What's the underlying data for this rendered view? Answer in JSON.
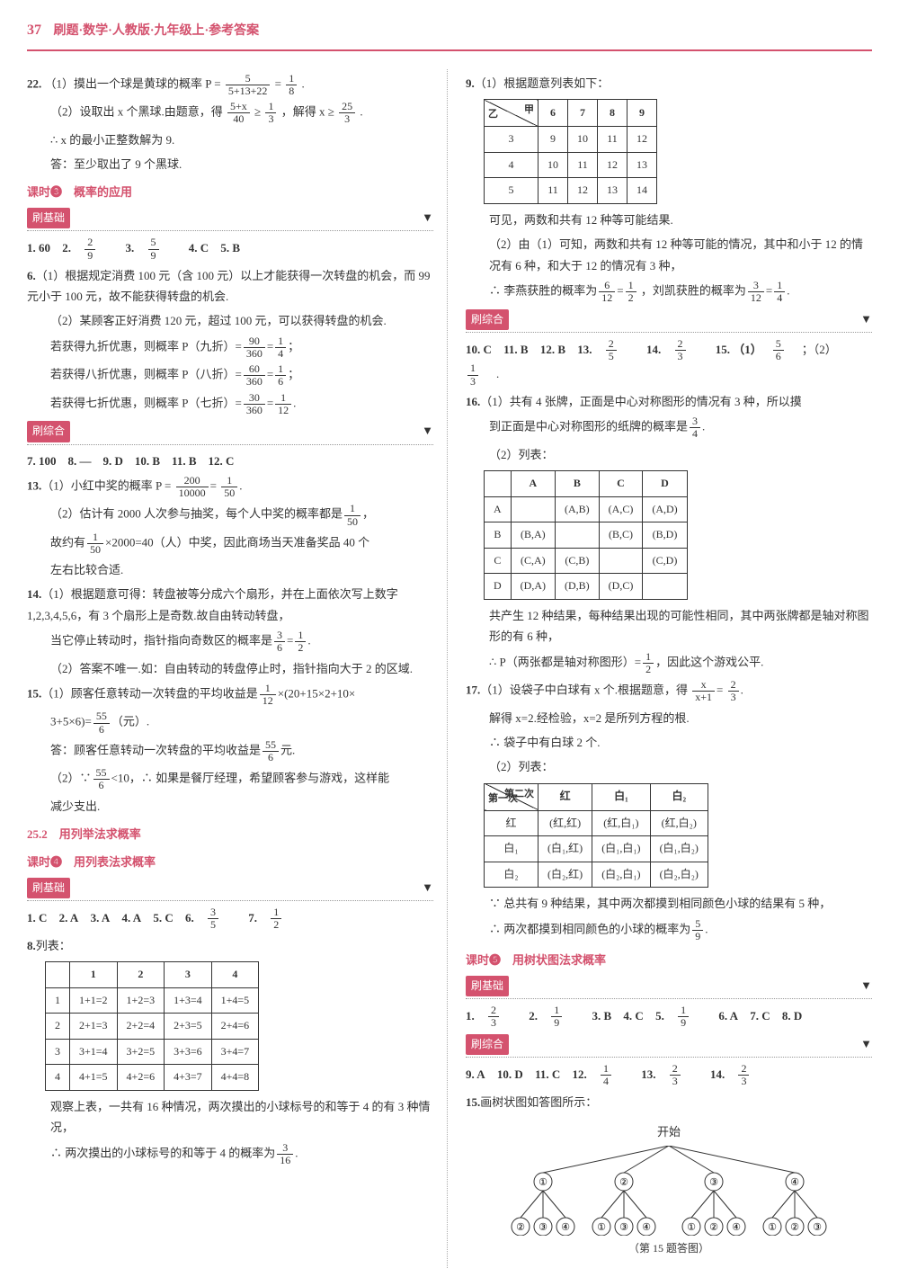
{
  "header": {
    "page": "37",
    "title": "刷题·数学·人教版·九年级上·参考答案"
  },
  "colors": {
    "accent": "#d4526e",
    "text": "#333333",
    "border": "#333333"
  },
  "left": {
    "q22": {
      "num": "22.",
      "p1_a": "（1）摸出一个球是黄球的概率 P =",
      "p1_frac_n": "5",
      "p1_frac_d": "5+13+22",
      "p1_eq": "=",
      "p1_r_n": "1",
      "p1_r_d": "8",
      "p1_end": ".",
      "p2_a": "（2）设取出 x 个黑球.由题意，得",
      "p2_f1_n": "5+x",
      "p2_f1_d": "40",
      "p2_ge": "≥",
      "p2_f2_n": "1",
      "p2_f2_d": "3",
      "p2_b": "，解得 x ≥",
      "p2_f3_n": "25",
      "p2_f3_d": "3",
      "p2_end": ".",
      "p3": "∴ x 的最小正整数解为 9.",
      "p4": "答：至少取出了 9 个黑球."
    },
    "lesson3": {
      "title": "课时❸　概率的应用",
      "sub": "刷基础"
    },
    "row1": {
      "a1": "1. 60",
      "a2": "2.",
      "a2n": "2",
      "a2d": "9",
      "a3": "3.",
      "a3n": "5",
      "a3d": "9",
      "a4": "4. C",
      "a5": "5. B"
    },
    "q6": {
      "num": "6.",
      "p1": "（1）根据规定消费 100 元（含 100 元）以上才能获得一次转盘的机会，而 99 元小于 100 元，故不能获得转盘的机会.",
      "p2": "（2）某顾客正好消费 120 元，超过 100 元，可以获得转盘的机会.",
      "l9a": "若获得九折优惠，则概率 P（九折）=",
      "l9_n1": "90",
      "l9_d1": "360",
      "eq": "=",
      "l9_n2": "1",
      "l9_d2": "4",
      "semi": "；",
      "l8a": "若获得八折优惠，则概率 P（八折）=",
      "l8_n1": "60",
      "l8_d1": "360",
      "l8_n2": "1",
      "l8_d2": "6",
      "l7a": "若获得七折优惠，则概率 P（七折）=",
      "l7_n1": "30",
      "l7_d1": "360",
      "l7_n2": "1",
      "l7_d2": "12",
      "dot": "."
    },
    "综合1": {
      "sub": "刷综合"
    },
    "row2": "7. 100　8. —　9. D　10. B　11. B　12. C",
    "q13": {
      "num": "13.",
      "p1a": "（1）小红中奖的概率 P =",
      "p1n1": "200",
      "p1d1": "10000",
      "eq": "=",
      "p1n2": "1",
      "p1d2": "50",
      "dot": ".",
      "p2a": "（2）估计有 2000 人次参与抽奖，每个人中奖的概率都是",
      "p2n": "1",
      "p2d": "50",
      "comma": "，",
      "p3a": "故约有",
      "p3n": "1",
      "p3d": "50",
      "p3b": "×2000=40（人）中奖，因此商场当天准备奖品 40 个",
      "p4": "左右比较合适."
    },
    "q14": {
      "num": "14.",
      "p1": "（1）根据题意可得：转盘被等分成六个扇形，并在上面依次写上数字 1,2,3,4,5,6，有 3 个扇形上是奇数.故自由转动转盘，",
      "p2a": "当它停止转动时，指针指向奇数区的概率是",
      "p2n1": "3",
      "p2d1": "6",
      "eq": "=",
      "p2n2": "1",
      "p2d2": "2",
      "dot": ".",
      "p3": "（2）答案不唯一.如：自由转动的转盘停止时，指针指向大于 2 的区域."
    },
    "q15": {
      "num": "15.",
      "p1a": "（1）顾客任意转动一次转盘的平均收益是",
      "p1n": "1",
      "p1d": "12",
      "p1b": "×(20+15×2+10×",
      "p2a": "3+5×6)=",
      "p2n": "55",
      "p2d": "6",
      "p2b": "（元）.",
      "p3a": "答：顾客任意转动一次转盘的平均收益是",
      "p3n": "55",
      "p3d": "6",
      "p3b": "元.",
      "p4a": "（2）∵",
      "p4n": "55",
      "p4d": "6",
      "p4b": "<10，∴ 如果是餐厅经理，希望顾客参与游戏，这样能",
      "p5": "减少支出."
    },
    "section252": {
      "title": "25.2　用列举法求概率"
    },
    "lesson4": {
      "title": "课时❹　用列表法求概率",
      "sub": "刷基础"
    },
    "row3": {
      "a1": "1. C",
      "a2": "2. A",
      "a3": "3. A",
      "a4": "4. A",
      "a5": "5. C",
      "a6": "6.",
      "a6n": "3",
      "a6d": "5",
      "a7": "7.",
      "a7n": "1",
      "a7d": "2"
    },
    "q8": {
      "num": "8.",
      "head": "列表：",
      "table": {
        "cols": [
          "",
          "1",
          "2",
          "3",
          "4"
        ],
        "rows": [
          [
            "1",
            "1+1=2",
            "1+2=3",
            "1+3=4",
            "1+4=5"
          ],
          [
            "2",
            "2+1=3",
            "2+2=4",
            "2+3=5",
            "2+4=6"
          ],
          [
            "3",
            "3+1=4",
            "3+2=5",
            "3+3=6",
            "3+4=7"
          ],
          [
            "4",
            "4+1=5",
            "4+2=6",
            "4+3=7",
            "4+4=8"
          ]
        ]
      },
      "p1": "观察上表，一共有 16 种情况，两次摸出的小球标号的和等于 4 的有 3 种情况，",
      "p2a": "∴ 两次摸出的小球标号的和等于 4 的概率为",
      "p2n": "3",
      "p2d": "16",
      "dot": "."
    }
  },
  "right": {
    "q9": {
      "num": "9.",
      "p1": "（1）根据题意列表如下：",
      "diag": {
        "top": "甲",
        "left": "乙"
      },
      "table": {
        "cols": [
          "6",
          "7",
          "8",
          "9"
        ],
        "rows": [
          [
            "3",
            "9",
            "10",
            "11",
            "12"
          ],
          [
            "4",
            "10",
            "11",
            "12",
            "13"
          ],
          [
            "5",
            "11",
            "12",
            "13",
            "14"
          ]
        ]
      },
      "p2": "可见，两数和共有 12 种等可能结果.",
      "p3": "（2）由（1）可知，两数和共有 12 种等可能的情况，其中和小于 12 的情况有 6 种，和大于 12 的情况有 3 种，",
      "p4a": "∴ 李燕获胜的概率为",
      "p4n1": "6",
      "p4d1": "12",
      "eq": "=",
      "p4n2": "1",
      "p4d2": "2",
      "p4b": "，刘凯获胜的概率为",
      "p4n3": "3",
      "p4d3": "12",
      "p4n4": "1",
      "p4d4": "4",
      "dot": "."
    },
    "综合2": {
      "sub": "刷综合"
    },
    "row4": {
      "a10": "10. C",
      "a11": "11. B",
      "a12": "12. B",
      "a13": "13.",
      "a13n": "2",
      "a13d": "5",
      "a14": "14.",
      "a14n": "2",
      "a14d": "3",
      "a15a": "15. （1）",
      "a15n1": "5",
      "a15d1": "6",
      "a15b": "；（2）",
      "a15n2": "1",
      "a15d2": "3",
      "dot": "."
    },
    "q16": {
      "num": "16.",
      "p1": "（1）共有 4 张牌，正面是中心对称图形的情况有 3 种，所以摸",
      "p1b": "到正面是中心对称图形的纸牌的概率是",
      "p1n": "3",
      "p1d": "4",
      "dot": ".",
      "p2": "（2）列表：",
      "table": {
        "cols": [
          "",
          "A",
          "B",
          "C",
          "D"
        ],
        "rows": [
          [
            "A",
            "",
            "(A,B)",
            "(A,C)",
            "(A,D)"
          ],
          [
            "B",
            "(B,A)",
            "",
            "(B,C)",
            "(B,D)"
          ],
          [
            "C",
            "(C,A)",
            "(C,B)",
            "",
            "(C,D)"
          ],
          [
            "D",
            "(D,A)",
            "(D,B)",
            "(D,C)",
            ""
          ]
        ]
      },
      "p3": "共产生 12 种结果，每种结果出现的可能性相同，其中两张牌都是轴对称图形的有 6 种，",
      "p4a": "∴ P（两张都是轴对称图形）=",
      "p4n": "1",
      "p4d": "2",
      "p4b": "，因此这个游戏公平."
    },
    "q17": {
      "num": "17.",
      "p1a": "（1）设袋子中白球有 x 个.根据题意，得",
      "p1n": "x",
      "p1d": "x+1",
      "eq": "=",
      "p1n2": "2",
      "p1d2": "3",
      "dot": ".",
      "p2": "解得 x=2.经检验，x=2 是所列方程的根.",
      "p3": "∴ 袋子中有白球 2 个.",
      "p4": "（2）列表：",
      "diag": {
        "top": "第二次",
        "left": "第一次"
      },
      "table": {
        "cols": [
          "红",
          "白₁",
          "白₂"
        ],
        "rows": [
          [
            "红",
            "(红,红)",
            "(红,白₁)",
            "(红,白₂)"
          ],
          [
            "白₁",
            "(白₁,红)",
            "(白₁,白₁)",
            "(白₁,白₂)"
          ],
          [
            "白₂",
            "(白₂,红)",
            "(白₂,白₁)",
            "(白₂,白₂)"
          ]
        ]
      },
      "p5": "∵ 总共有 9 种结果，其中两次都摸到相同颜色小球的结果有 5 种，",
      "p6a": "∴ 两次都摸到相同颜色的小球的概率为",
      "p6n": "5",
      "p6d": "9",
      "dot2": "."
    },
    "lesson5": {
      "title": "课时❺　用树状图法求概率",
      "sub": "刷基础"
    },
    "row5": {
      "a1": "1.",
      "a1n": "2",
      "a1d": "3",
      "a2": "2.",
      "a2n": "1",
      "a2d": "9",
      "a3": "3. B",
      "a4": "4. C",
      "a5": "5.",
      "a5n": "1",
      "a5d": "9",
      "a6": "6. A",
      "a7": "7. C",
      "a8": "8. D"
    },
    "综合3": {
      "sub": "刷综合"
    },
    "row6": {
      "a9": "9. A",
      "a10": "10. D",
      "a11": "11. C",
      "a12": "12.",
      "a12n": "1",
      "a12d": "4",
      "a13": "13.",
      "a13n": "2",
      "a13d": "3",
      "a14": "14.",
      "a14n": "2",
      "a14d": "3"
    },
    "q15r": {
      "num": "15.",
      "p1": "画树状图如答图所示：",
      "root": "开始",
      "caption": "（第 15 题答图）",
      "l1": [
        "①",
        "②",
        "③",
        "④"
      ],
      "l2": [
        [
          "②",
          "③",
          "④"
        ],
        [
          "①",
          "③",
          "④"
        ],
        [
          "①",
          "②",
          "④"
        ],
        [
          "①",
          "②",
          "③"
        ]
      ]
    }
  }
}
